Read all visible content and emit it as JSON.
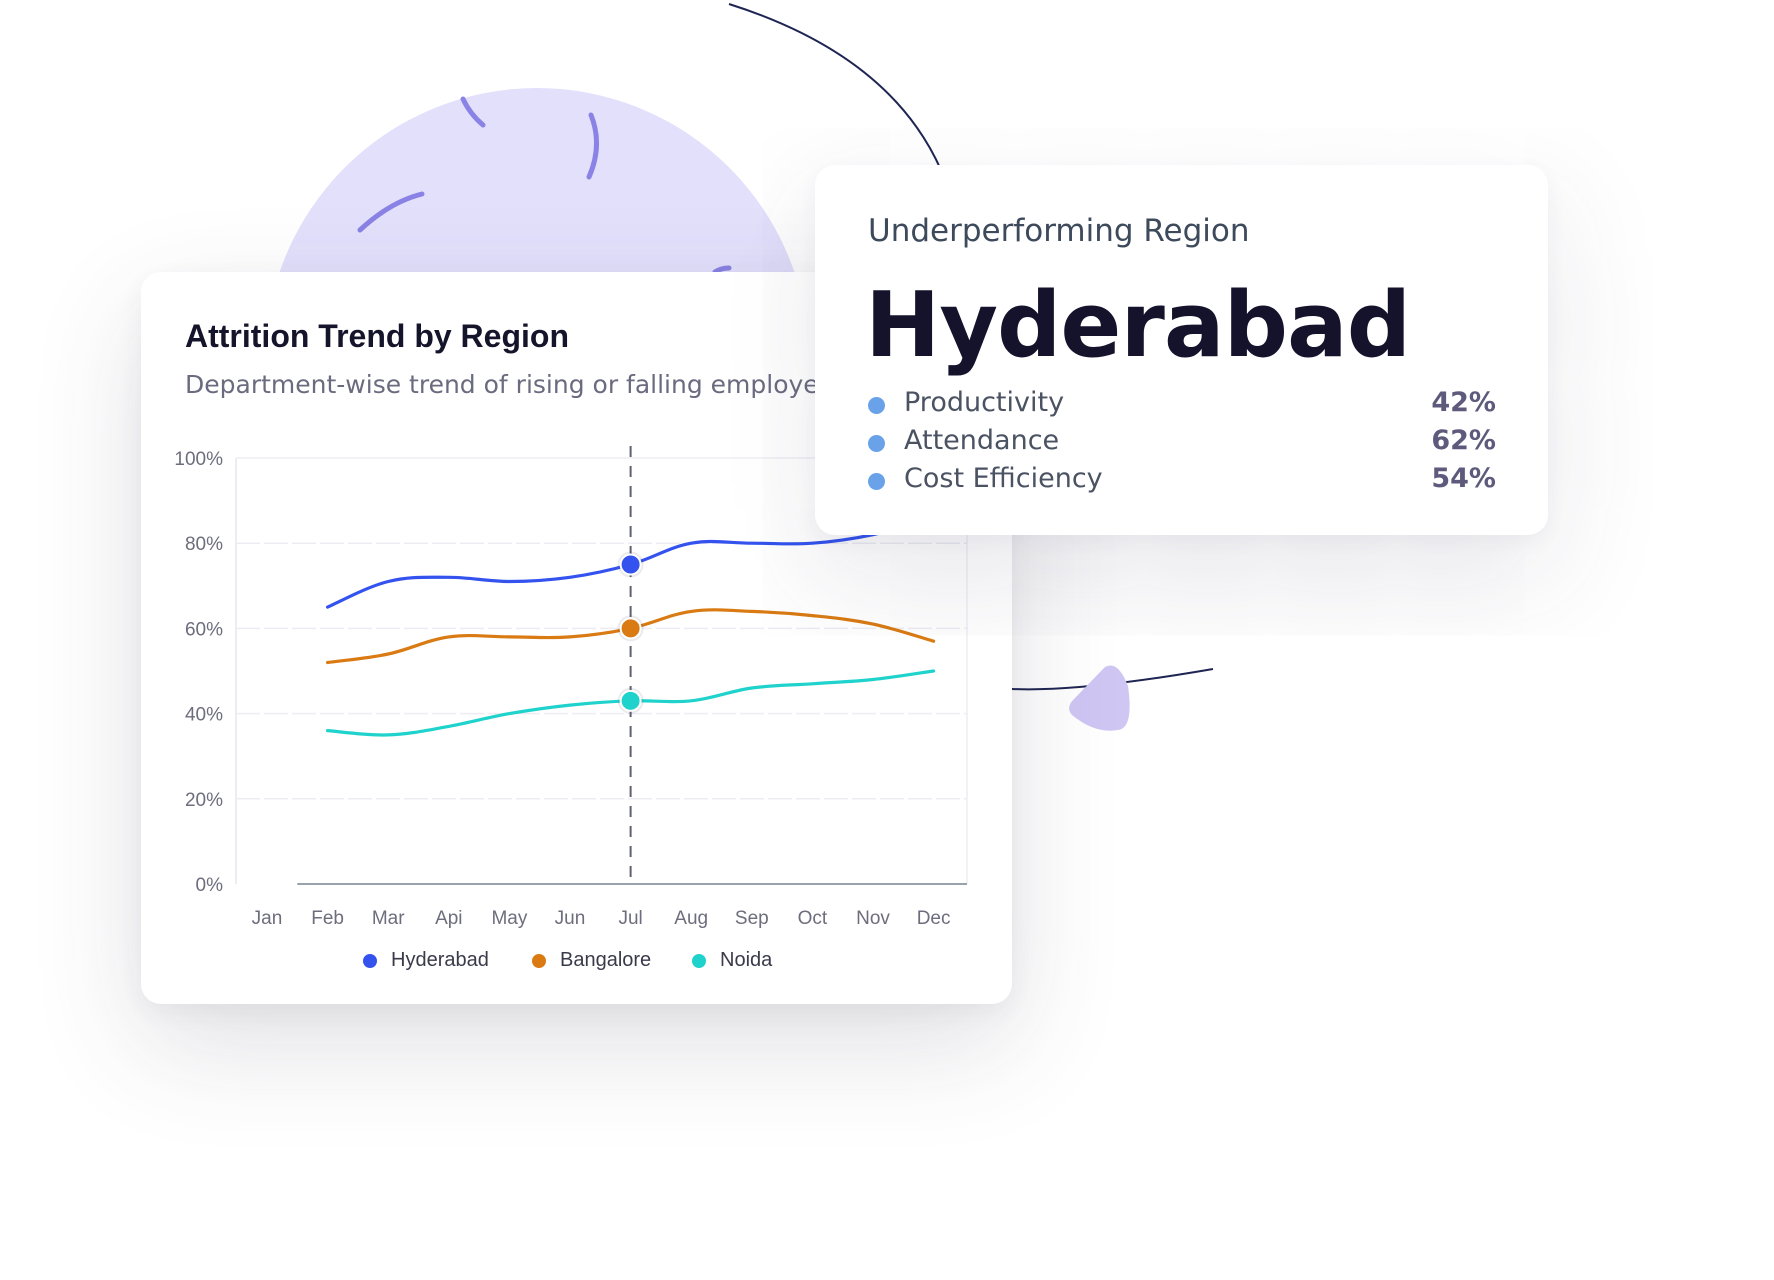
{
  "colors": {
    "hyderabad": "#3352ee",
    "bangalore": "#d97a12",
    "noida": "#1fd3cc",
    "deco_circle": "#e2e0fb",
    "deco_strokes": "#8a82e4",
    "deco_triangle": "#cfc6f4",
    "deco_line": "#1e2552",
    "metric_dot": "#6aa2ea"
  },
  "icons": {
    "legend_marker": "filled-circle",
    "metric_marker": "filled-circle"
  },
  "chart_card": {
    "title": "Attrition Trend by Region",
    "subtitle": "Department-wise trend of rising or falling employee ri"
  },
  "region_card": {
    "label": "Underperforming Region",
    "name": "Hyderabad",
    "metrics": [
      {
        "label": "Productivity",
        "value": "42%"
      },
      {
        "label": "Attendance",
        "value": "62%"
      },
      {
        "label": "Cost Efficiency",
        "value": "54%"
      }
    ]
  },
  "chart_data": {
    "type": "line",
    "title": "Attrition Trend by Region",
    "subtitle": "Department-wise trend of rising or falling employee ri",
    "categories": [
      "Jan",
      "Feb",
      "Mar",
      "Api",
      "May",
      "Jun",
      "Jul",
      "Aug",
      "Sep",
      "Oct",
      "Nov",
      "Dec"
    ],
    "yticks": [
      "0%",
      "20%",
      "40%",
      "60%",
      "80%",
      "100%"
    ],
    "ylim": [
      0,
      100
    ],
    "grid": true,
    "highlight_category": "Jul",
    "legend_position": "bottom-center",
    "series": [
      {
        "name": "Hyderabad",
        "start_index": 1,
        "values": [
          null,
          65,
          71,
          72,
          71,
          72,
          75,
          80,
          80,
          80,
          82,
          86
        ]
      },
      {
        "name": "Bangalore",
        "start_index": 1,
        "values": [
          null,
          52,
          54,
          58,
          58,
          58,
          60,
          64,
          64,
          63,
          61,
          57
        ]
      },
      {
        "name": "Noida",
        "start_index": 1,
        "values": [
          null,
          36,
          35,
          37,
          40,
          42,
          43,
          43,
          46,
          47,
          48,
          50
        ]
      }
    ]
  }
}
